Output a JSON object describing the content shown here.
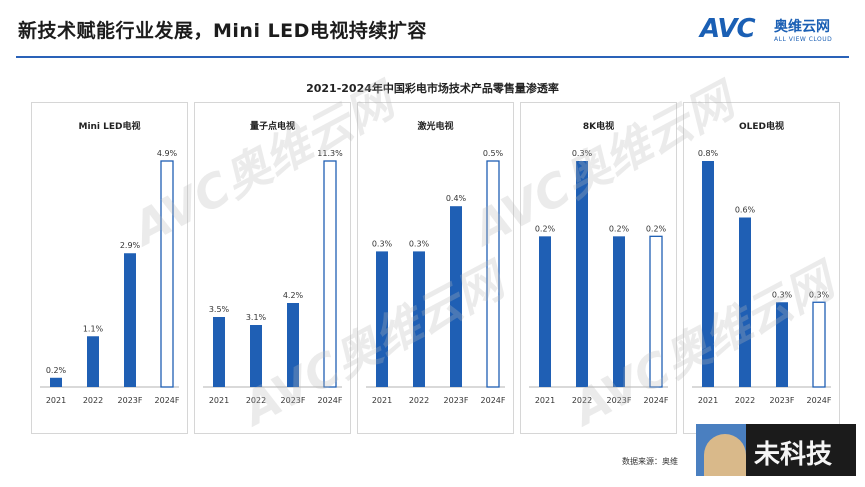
{
  "header": {
    "title": "新技术赋能行业发展，Mini LED电视持续扩容"
  },
  "logo": {
    "mark": "AVC",
    "cn": "奥维云网",
    "en": "ALL VIEW CLOUD"
  },
  "watermark": {
    "text": "AVC奥维云网"
  },
  "chart_title": "2021-2024年中国彩电市场技术产品零售量渗透率",
  "chart_data": {
    "type": "bar",
    "title": "2021-2024年中国彩电市场技术产品零售量渗透率",
    "categories": [
      "2021",
      "2022",
      "2023F",
      "2024F"
    ],
    "forecast_categories": [
      "2024F"
    ],
    "colors": {
      "bar": "#1f5fb4",
      "forecast_fill": "#ffffff",
      "forecast_stroke": "#1f5fb4"
    },
    "panels": [
      {
        "name": "Mini LED电视",
        "values": [
          0.2,
          1.1,
          2.9,
          4.9
        ],
        "labels": [
          "0.2%",
          "1.1%",
          "2.9%",
          "4.9%"
        ]
      },
      {
        "name": "量子点电视",
        "values": [
          3.5,
          3.1,
          4.2,
          11.3
        ],
        "labels": [
          "3.5%",
          "3.1%",
          "4.2%",
          "11.3%"
        ]
      },
      {
        "name": "激光电视",
        "values": [
          0.3,
          0.3,
          0.4,
          0.5
        ],
        "labels": [
          "0.3%",
          "0.3%",
          "0.4%",
          "0.5%"
        ]
      },
      {
        "name": "8K电视",
        "values": [
          0.2,
          0.3,
          0.2,
          0.2
        ],
        "labels": [
          "0.2%",
          "0.3%",
          "0.2%",
          "0.2%"
        ]
      },
      {
        "name": "OLED电视",
        "values": [
          0.8,
          0.6,
          0.3,
          0.3
        ],
        "labels": [
          "0.8%",
          "0.6%",
          "0.3%",
          "0.3%"
        ]
      }
    ]
  },
  "source": "数据来源：奥维",
  "overlay": {
    "text": "未科技"
  }
}
